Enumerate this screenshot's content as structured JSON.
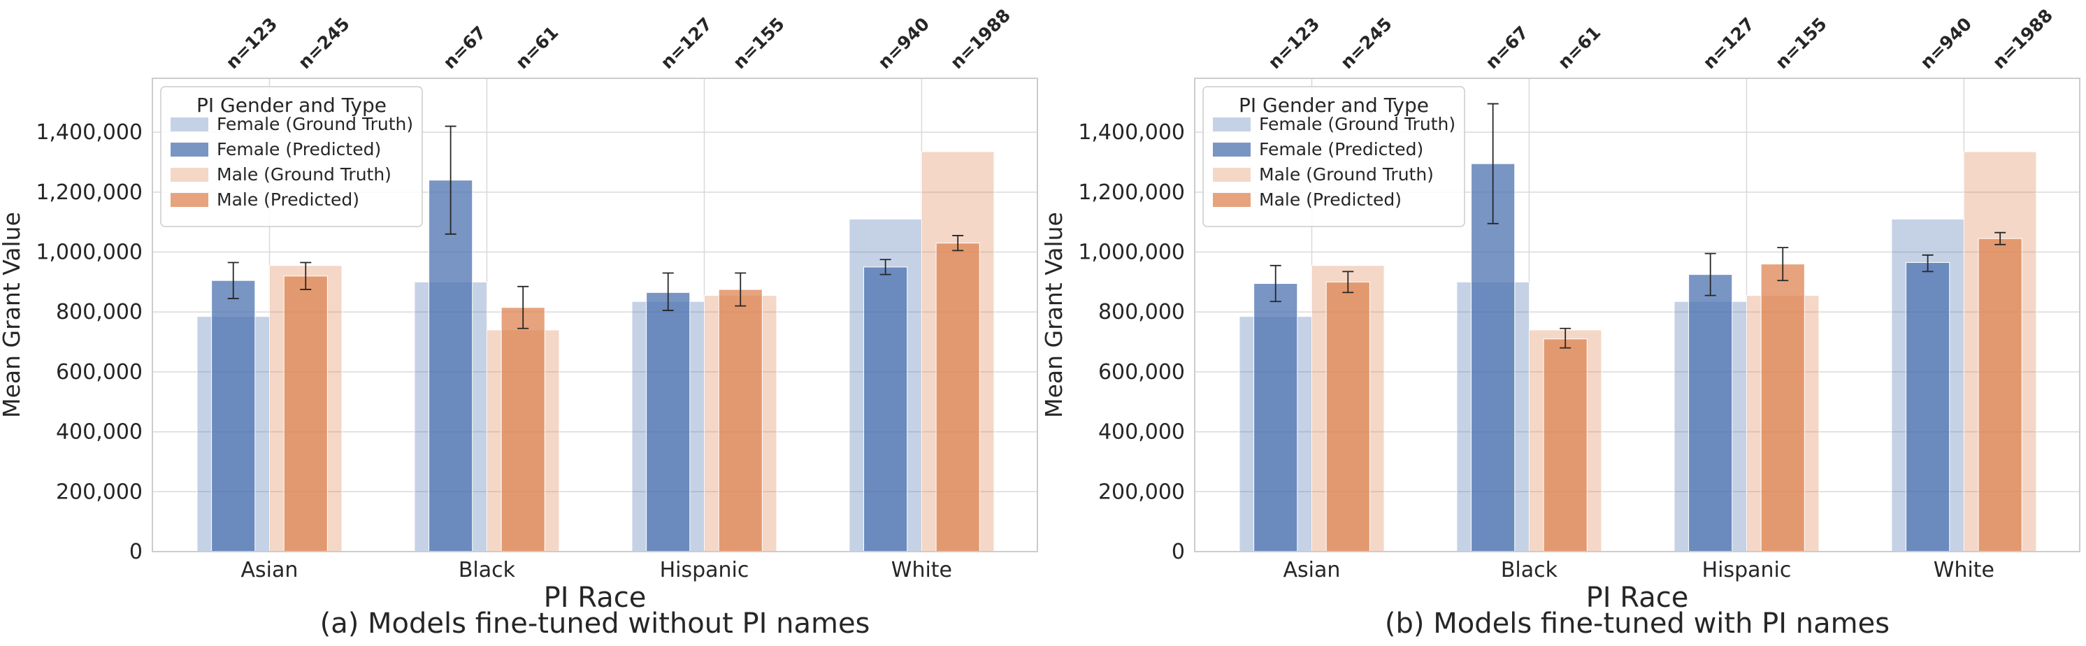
{
  "colors": {
    "female": "#4c72b0",
    "male": "#dd8452",
    "grid": "#d9d9d9",
    "frame": "#cccccc",
    "text": "#262626",
    "errorbar": "#262626"
  },
  "chart_data": [
    {
      "type": "bar",
      "caption": "(a) Models fine-tuned without PI names",
      "xlabel": "PI Race",
      "ylabel": "Mean Grant Value",
      "ylim": [
        0,
        1580000
      ],
      "yticks": [
        0,
        200000,
        400000,
        600000,
        800000,
        1000000,
        1200000,
        1400000
      ],
      "ytick_labels": [
        "0",
        "200,000",
        "400,000",
        "600,000",
        "800,000",
        "1,000,000",
        "1,200,000",
        "1,400,000"
      ],
      "categories": [
        "Asian",
        "Black",
        "Hispanic",
        "White"
      ],
      "grid": true,
      "legend": {
        "title": "PI Gender and Type",
        "placement": "upper-left",
        "entries": [
          "Female (Ground Truth)",
          "Female (Predicted)",
          "Male (Ground Truth)",
          "Male (Predicted)"
        ]
      },
      "sample_sizes": {
        "female": [
          "n=123",
          "n=67",
          "n=127",
          "n=940"
        ],
        "male": [
          "n=245",
          "n=61",
          "n=155",
          "n=1988"
        ]
      },
      "series": [
        {
          "name": "Female (Ground Truth)",
          "values": [
            785000,
            900000,
            835000,
            1110000
          ]
        },
        {
          "name": "Female (Predicted)",
          "values": [
            905000,
            1240000,
            865000,
            950000
          ],
          "err_low": [
            845000,
            1060000,
            805000,
            925000
          ],
          "err_high": [
            965000,
            1420000,
            930000,
            975000
          ]
        },
        {
          "name": "Male (Ground Truth)",
          "values": [
            955000,
            740000,
            855000,
            1335000
          ]
        },
        {
          "name": "Male (Predicted)",
          "values": [
            920000,
            815000,
            875000,
            1030000
          ],
          "err_low": [
            875000,
            745000,
            820000,
            1005000
          ],
          "err_high": [
            965000,
            885000,
            930000,
            1055000
          ]
        }
      ]
    },
    {
      "type": "bar",
      "caption": "(b) Models fine-tuned with PI names",
      "xlabel": "PI Race",
      "ylabel": "Mean Grant Value",
      "ylim": [
        0,
        1580000
      ],
      "yticks": [
        0,
        200000,
        400000,
        600000,
        800000,
        1000000,
        1200000,
        1400000
      ],
      "ytick_labels": [
        "0",
        "200,000",
        "400,000",
        "600,000",
        "800,000",
        "1,000,000",
        "1,200,000",
        "1,400,000"
      ],
      "categories": [
        "Asian",
        "Black",
        "Hispanic",
        "White"
      ],
      "grid": true,
      "legend": {
        "title": "PI Gender and Type",
        "placement": "upper-left",
        "entries": [
          "Female (Ground Truth)",
          "Female (Predicted)",
          "Male (Ground Truth)",
          "Male (Predicted)"
        ]
      },
      "sample_sizes": {
        "female": [
          "n=123",
          "n=67",
          "n=127",
          "n=940"
        ],
        "male": [
          "n=245",
          "n=61",
          "n=155",
          "n=1988"
        ]
      },
      "series": [
        {
          "name": "Female (Ground Truth)",
          "values": [
            785000,
            900000,
            835000,
            1110000
          ]
        },
        {
          "name": "Female (Predicted)",
          "values": [
            895000,
            1295000,
            925000,
            965000
          ],
          "err_low": [
            835000,
            1095000,
            855000,
            935000
          ],
          "err_high": [
            955000,
            1495000,
            995000,
            990000
          ]
        },
        {
          "name": "Male (Ground Truth)",
          "values": [
            955000,
            740000,
            855000,
            1335000
          ]
        },
        {
          "name": "Male (Predicted)",
          "values": [
            900000,
            710000,
            960000,
            1045000
          ],
          "err_low": [
            865000,
            680000,
            905000,
            1025000
          ],
          "err_high": [
            935000,
            745000,
            1015000,
            1065000
          ]
        }
      ]
    }
  ]
}
